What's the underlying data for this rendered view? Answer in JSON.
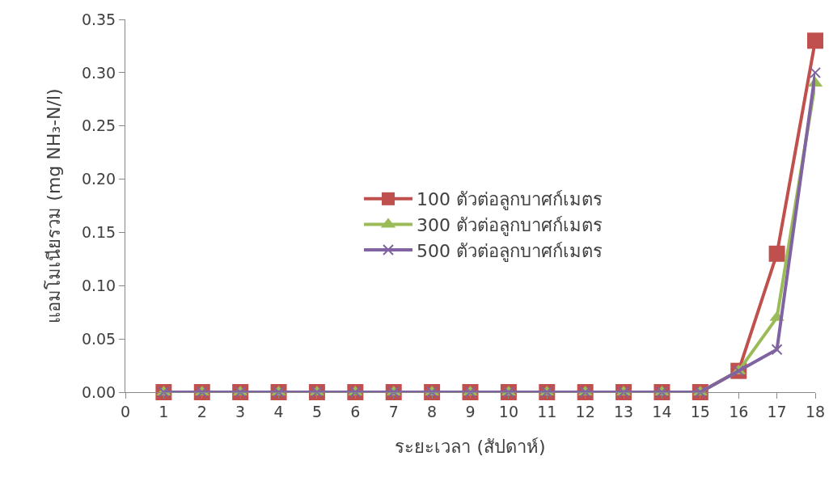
{
  "chart_data": {
    "type": "line",
    "xlabel": "ระยะเวลา (สัปดาห์)",
    "ylabel": "แอมโมเนียรวม (mg NH₃-N/l)",
    "x": [
      1,
      2,
      3,
      4,
      5,
      6,
      7,
      8,
      9,
      10,
      11,
      12,
      13,
      14,
      15,
      16,
      17,
      18
    ],
    "xlim": [
      0,
      18
    ],
    "xticks": [
      0,
      1,
      2,
      3,
      4,
      5,
      6,
      7,
      8,
      9,
      10,
      11,
      12,
      13,
      14,
      15,
      16,
      17,
      18
    ],
    "ylim": [
      0,
      0.35
    ],
    "yticks": [
      {
        "value": 0,
        "label": "0.00"
      },
      {
        "value": 0.05,
        "label": "0.05"
      },
      {
        "value": 0.1,
        "label": "0.10"
      },
      {
        "value": 0.15,
        "label": "0.15"
      },
      {
        "value": 0.2,
        "label": "0.20"
      },
      {
        "value": 0.25,
        "label": "0.25"
      },
      {
        "value": 0.3,
        "label": "0.30"
      },
      {
        "value": 0.35,
        "label": "0.35"
      }
    ],
    "grid": false,
    "legend": "right",
    "series": [
      {
        "name": "100 ตัวต่อลูกบาศก์เมตร",
        "color": "#c0504d",
        "marker": "square",
        "values": [
          0,
          0,
          0,
          0,
          0,
          0,
          0,
          0,
          0,
          0,
          0,
          0,
          0,
          0,
          0,
          0.02,
          0.13,
          0.33
        ]
      },
      {
        "name": "300 ตัวต่อลูกบาศก์เมตร",
        "color": "#9bbb59",
        "marker": "triangle",
        "values": [
          0,
          0,
          0,
          0,
          0,
          0,
          0,
          0,
          0,
          0,
          0,
          0,
          0,
          0,
          0,
          0.02,
          0.07,
          0.29
        ]
      },
      {
        "name": "500 ตัวต่อลูกบาศก์เมตร",
        "color": "#8064a2",
        "marker": "cross",
        "values": [
          0,
          0,
          0,
          0,
          0,
          0,
          0,
          0,
          0,
          0,
          0,
          0,
          0,
          0,
          0,
          0.02,
          0.04,
          0.3
        ]
      }
    ]
  }
}
